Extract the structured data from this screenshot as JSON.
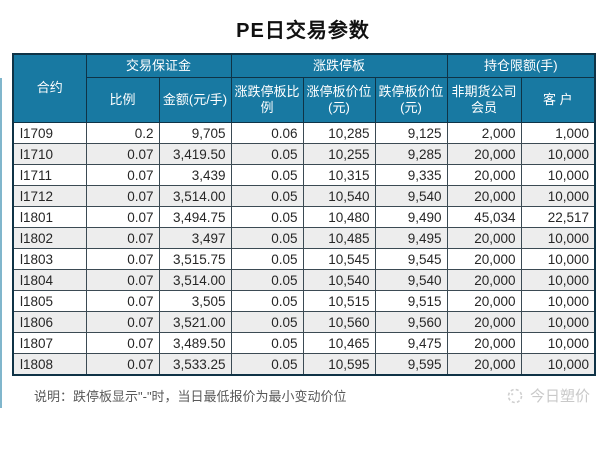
{
  "title": "PE日交易参数",
  "table": {
    "contract_header": "合约",
    "groups": [
      {
        "label": "交易保证金",
        "colspan": 2
      },
      {
        "label": "涨跌停板",
        "colspan": 3
      },
      {
        "label": "持仓限额(手)",
        "colspan": 2
      }
    ],
    "sub_cols": [
      "比例",
      "金额(元/手)",
      "涨跌停板比例",
      "涨停板价位(元)",
      "跌停板价位(元)",
      "非期货公司会员",
      "客 户"
    ],
    "rows": [
      [
        "l1709",
        "0.2",
        "9,705",
        "0.06",
        "10,285",
        "9,125",
        "2,000",
        "1,000"
      ],
      [
        "l1710",
        "0.07",
        "3,419.50",
        "0.05",
        "10,255",
        "9,285",
        "20,000",
        "10,000"
      ],
      [
        "l1711",
        "0.07",
        "3,439",
        "0.05",
        "10,315",
        "9,335",
        "20,000",
        "10,000"
      ],
      [
        "l1712",
        "0.07",
        "3,514.00",
        "0.05",
        "10,540",
        "9,540",
        "20,000",
        "10,000"
      ],
      [
        "l1801",
        "0.07",
        "3,494.75",
        "0.05",
        "10,480",
        "9,490",
        "45,034",
        "22,517"
      ],
      [
        "l1802",
        "0.07",
        "3,497",
        "0.05",
        "10,485",
        "9,495",
        "20,000",
        "10,000"
      ],
      [
        "l1803",
        "0.07",
        "3,515.75",
        "0.05",
        "10,545",
        "9,545",
        "20,000",
        "10,000"
      ],
      [
        "l1804",
        "0.07",
        "3,514.00",
        "0.05",
        "10,540",
        "9,540",
        "20,000",
        "10,000"
      ],
      [
        "l1805",
        "0.07",
        "3,505",
        "0.05",
        "10,515",
        "9,515",
        "20,000",
        "10,000"
      ],
      [
        "l1806",
        "0.07",
        "3,521.00",
        "0.05",
        "10,560",
        "9,560",
        "20,000",
        "10,000"
      ],
      [
        "l1807",
        "0.07",
        "3,489.50",
        "0.05",
        "10,465",
        "9,475",
        "20,000",
        "10,000"
      ],
      [
        "l1808",
        "0.07",
        "3,533.25",
        "0.05",
        "10,595",
        "9,595",
        "20,000",
        "10,000"
      ]
    ]
  },
  "footer": {
    "note": "说明：跌停板显示\"-\"时，当日最低报价为最小变动价位",
    "watermark": "今日塑价"
  },
  "colors": {
    "header_bg": "#1879A2",
    "header_border": "#0F3346",
    "grid_border": "#3B4A53",
    "row_alt": "#EDEDED",
    "note_text": "#595959",
    "watermark_text": "#C9C9C9"
  }
}
